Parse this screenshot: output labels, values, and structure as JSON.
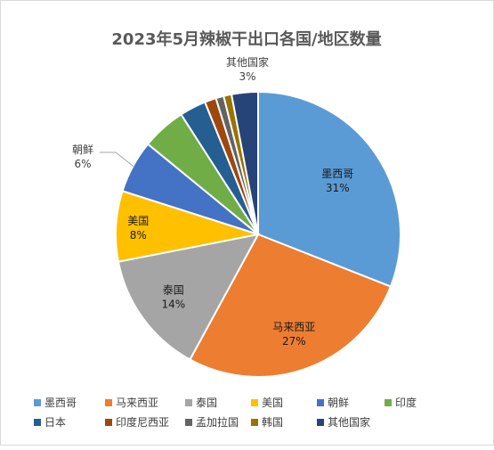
{
  "chart_data": {
    "type": "pie",
    "title": "2023年5月辣椒干出口各国/地区数量",
    "categories": [
      "墨西哥",
      "马来西亚",
      "泰国",
      "美国",
      "朝鲜",
      "印度",
      "日本",
      "印度尼西亚",
      "孟加拉国",
      "韩国",
      "其他国家"
    ],
    "values": [
      31,
      27,
      14,
      8,
      6,
      5,
      3,
      1.3,
      0.9,
      0.9,
      3
    ],
    "slice_labels": [
      {
        "name": "墨西哥",
        "pct": "31%"
      },
      {
        "name": "马来西亚",
        "pct": "27%"
      },
      {
        "name": "泰国",
        "pct": "14%"
      },
      {
        "name": "美国",
        "pct": "8%"
      },
      {
        "name": "朝鲜",
        "pct": "6%"
      },
      {
        "name": "其他国家",
        "pct": "3%"
      }
    ],
    "colors": [
      "#5b9bd5",
      "#ed7d31",
      "#a5a5a5",
      "#ffc000",
      "#4472c4",
      "#70ad47",
      "#255e91",
      "#9e480e",
      "#636363",
      "#997300",
      "#264478"
    ],
    "legend_position": "bottom",
    "start_angle_deg": 0,
    "direction": "clockwise"
  }
}
